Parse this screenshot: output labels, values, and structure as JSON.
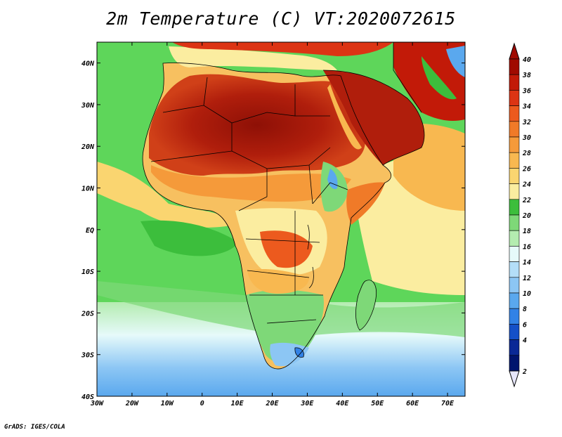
{
  "title": "2m Temperature (C) VT:2020072615",
  "credit": "GrADS: IGES/COLA",
  "map": {
    "variable": "2m Temperature",
    "units": "C",
    "valid_time": "2020072615",
    "lon_range": [
      -30,
      75
    ],
    "lat_range": [
      -40,
      45
    ],
    "lon_ticks": [
      "30W",
      "20W",
      "10W",
      "0",
      "10E",
      "20E",
      "30E",
      "40E",
      "50E",
      "60E",
      "70E"
    ],
    "lat_ticks": [
      "40S",
      "30S",
      "20S",
      "10S",
      "EQ",
      "10N",
      "20N",
      "30N",
      "40N"
    ],
    "colors": {
      "background_ocean_green": "#5ed65a",
      "hot_red": "#b01e0c",
      "dark_red": "#8e1006",
      "orange": "#f0a040",
      "yellow": "#f7ef9a",
      "light_blue": "#7ec8f0"
    }
  },
  "colorbar": {
    "labels": [
      "40",
      "38",
      "36",
      "34",
      "32",
      "30",
      "28",
      "26",
      "24",
      "22",
      "20",
      "18",
      "16",
      "14",
      "12",
      "10",
      "8",
      "6",
      "4",
      "2"
    ],
    "colors": [
      "#a00a00",
      "#c21a08",
      "#dc3414",
      "#ec5a1e",
      "#f07a28",
      "#f59a3a",
      "#f8b850",
      "#fad570",
      "#fbeda0",
      "#3cbe3c",
      "#7ed878",
      "#b4ecb0",
      "#e6fafa",
      "#b4def8",
      "#8cc6f4",
      "#5aa8ee",
      "#3282e6",
      "#1450c8",
      "#0a2896",
      "#00146e"
    ],
    "top_arrow_color": "#a00a00",
    "bottom_arrow_color": "#e6e6fa"
  }
}
